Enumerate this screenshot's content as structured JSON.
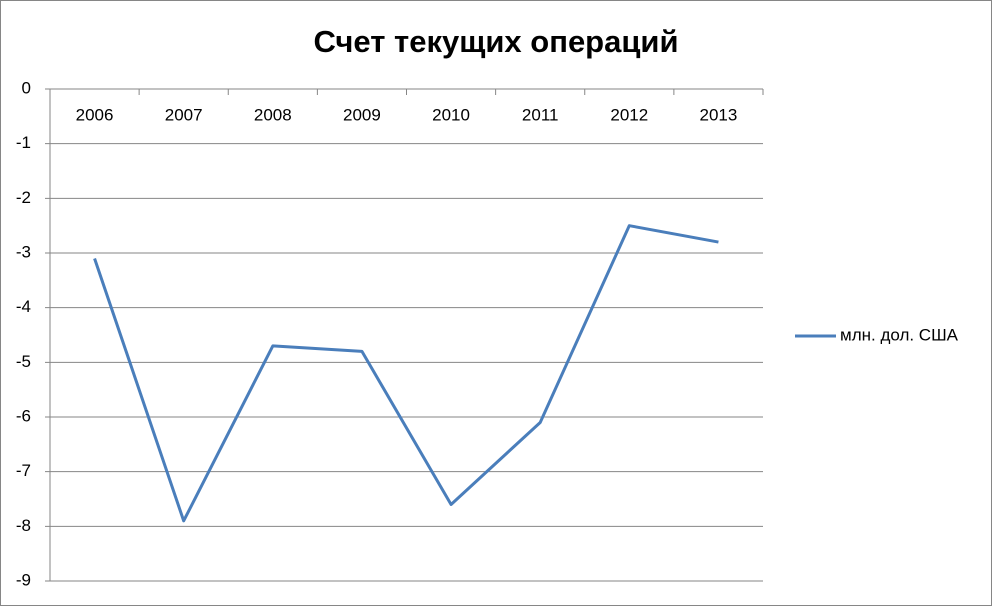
{
  "chart_data": {
    "type": "line",
    "title": "Счет текущих операций",
    "categories": [
      "2006",
      "2007",
      "2008",
      "2009",
      "2010",
      "2011",
      "2012",
      "2013"
    ],
    "series": [
      {
        "name": "млн. дол. США",
        "color": "#4a7ebb",
        "values": [
          -3.1,
          -7.9,
          -4.7,
          -4.8,
          -7.6,
          -6.1,
          -2.5,
          -2.8
        ]
      }
    ],
    "ylim": [
      -9,
      0
    ],
    "yticks": [
      0,
      -1,
      -2,
      -3,
      -4,
      -5,
      -6,
      -7,
      -8,
      -9
    ],
    "grid": true,
    "legend": "right"
  }
}
